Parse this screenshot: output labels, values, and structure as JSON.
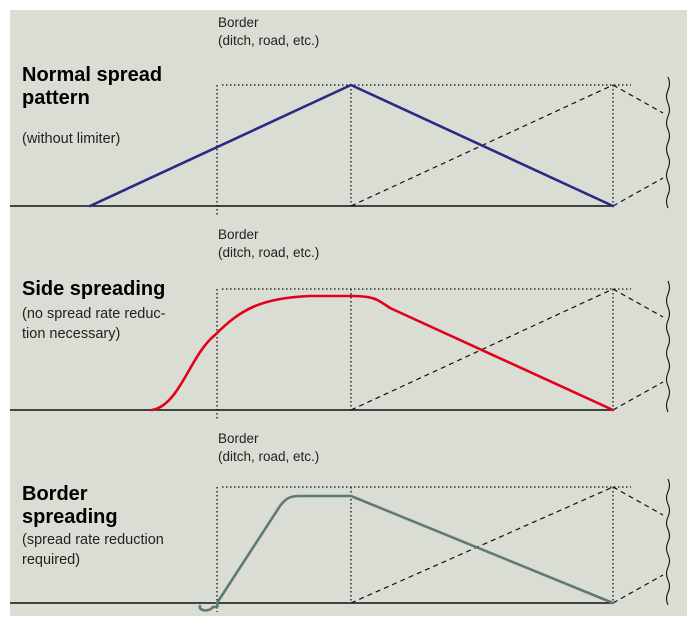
{
  "colors": {
    "background": "#d9ddd3",
    "normal_curve": "#2a2a86",
    "side_curve": "#e3001b",
    "border_curve": "#5f7a76",
    "guide": "#111111"
  },
  "panels": [
    {
      "border_label_line1": "Border",
      "border_label_line2": "(ditch, road, etc.)",
      "title_line1": "Normal spread",
      "title_line2": "pattern",
      "subtitle_line1": "(without limiter)",
      "subtitle_line2": "",
      "curve_color_key": "normal_curve"
    },
    {
      "border_label_line1": "Border",
      "border_label_line2": "(ditch, road, etc.)",
      "title_line1": "Side spreading",
      "title_line2": "",
      "subtitle_line1": "(no spread rate reduc-",
      "subtitle_line2": "tion necessary)",
      "curve_color_key": "side_curve"
    },
    {
      "border_label_line1": "Border",
      "border_label_line2": "(ditch, road, etc.)",
      "title_line1": "Border",
      "title_line2": "spreading",
      "subtitle_line1": "(spread rate reduction",
      "subtitle_line2": "required)",
      "curve_color_key": "border_curve"
    }
  ]
}
